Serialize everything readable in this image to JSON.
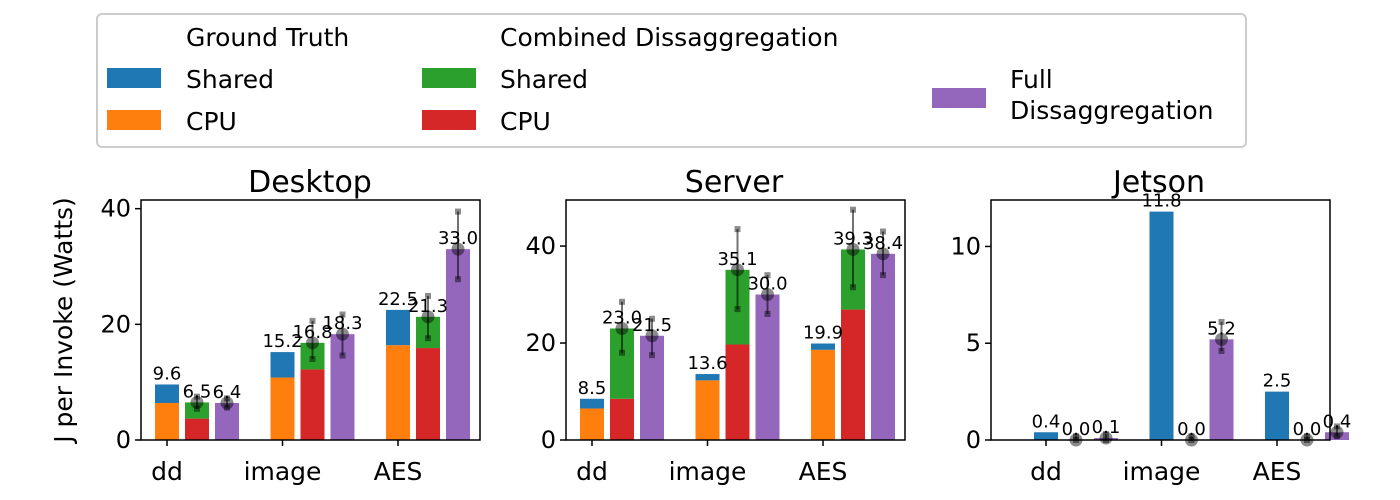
{
  "colors": {
    "gt_shared": "#1f77b4",
    "gt_cpu": "#ff7f0e",
    "comb_shared": "#2ca02c",
    "comb_cpu": "#d62728",
    "full": "#9467bd",
    "errorbar": "#000000"
  },
  "legend": {
    "group1_title": "Ground Truth",
    "group1_shared": "Shared",
    "group1_cpu": "CPU",
    "group2_title": "Combined Dissaggregation",
    "group2_shared": "Shared",
    "group2_cpu": "CPU",
    "full_line1": "Full",
    "full_line2": "Dissaggregation"
  },
  "ylabel": "J per Invoke (Watts)",
  "chart_data": [
    {
      "type": "bar",
      "title": "Desktop",
      "categories": [
        "dd",
        "image",
        "AES"
      ],
      "ylim": [
        0,
        41.5
      ],
      "yticks": [
        0,
        20,
        40
      ],
      "series": [
        {
          "name": "Ground Truth",
          "shared": [
            3.2,
            4.4,
            6.1
          ],
          "cpu": [
            6.4,
            10.8,
            16.4
          ],
          "labels": [
            "9.6",
            "15.2",
            "22.5"
          ]
        },
        {
          "name": "Combined Dissaggregation",
          "shared": [
            2.8,
            4.6,
            5.4
          ],
          "cpu": [
            3.7,
            12.2,
            15.9
          ],
          "labels": [
            "6.5",
            "16.8",
            "21.3"
          ],
          "error_mean": [
            6.5,
            16.8,
            21.3
          ],
          "error_low": [
            5.4,
            14.0,
            17.6
          ],
          "error_high": [
            7.5,
            20.6,
            24.9
          ]
        },
        {
          "name": "Full Dissaggregation",
          "values": [
            6.4,
            18.3,
            33.0
          ],
          "labels": [
            "6.4",
            "18.3",
            "33.0"
          ],
          "error_mean": [
            6.4,
            18.3,
            33.0
          ],
          "error_low": [
            5.6,
            14.6,
            27.8
          ],
          "error_high": [
            7.2,
            21.7,
            39.5
          ]
        }
      ]
    },
    {
      "type": "bar",
      "title": "Server",
      "categories": [
        "dd",
        "image",
        "AES"
      ],
      "ylim": [
        0,
        49.5
      ],
      "yticks": [
        0,
        20,
        40
      ],
      "series": [
        {
          "name": "Ground Truth",
          "shared": [
            2.0,
            1.3,
            1.3
          ],
          "cpu": [
            6.5,
            12.3,
            18.6
          ],
          "labels": [
            "8.5",
            "13.6",
            "19.9"
          ]
        },
        {
          "name": "Combined Dissaggregation",
          "shared": [
            14.5,
            15.4,
            12.4
          ],
          "cpu": [
            8.5,
            19.7,
            26.9
          ],
          "labels": [
            "23.0",
            "35.1",
            "39.3"
          ],
          "error_mean": [
            23.0,
            35.1,
            39.3
          ],
          "error_low": [
            18.0,
            27.0,
            31.5
          ],
          "error_high": [
            28.5,
            43.5,
            47.5
          ]
        },
        {
          "name": "Full Dissaggregation",
          "values": [
            21.5,
            30.0,
            38.4
          ],
          "labels": [
            "21.5",
            "30.0",
            "38.4"
          ],
          "error_mean": [
            21.5,
            30.0,
            38.4
          ],
          "error_low": [
            17.5,
            26.0,
            34.0
          ],
          "error_high": [
            25.0,
            34.0,
            43.0
          ]
        }
      ]
    },
    {
      "type": "bar",
      "title": "Jetson",
      "categories": [
        "dd",
        "image",
        "AES"
      ],
      "ylim": [
        0,
        12.4
      ],
      "yticks": [
        0,
        5,
        10
      ],
      "series": [
        {
          "name": "Ground Truth",
          "shared": [
            0.4,
            11.8,
            2.5
          ],
          "cpu": [
            0,
            0,
            0
          ],
          "labels": [
            "0.4",
            "11.8",
            "2.5"
          ]
        },
        {
          "name": "Combined Dissaggregation",
          "shared": [
            0.0,
            0.0,
            0.0
          ],
          "cpu": [
            0.0,
            0.0,
            0.0
          ],
          "labels": [
            "0.0",
            "0.0",
            "0.0"
          ],
          "error_mean": [
            0.0,
            0.0,
            0.0
          ],
          "error_low": [
            0.0,
            0.0,
            0.0
          ],
          "error_high": [
            0.2,
            0.2,
            0.2
          ]
        },
        {
          "name": "Full Dissaggregation",
          "values": [
            0.1,
            5.2,
            0.4
          ],
          "labels": [
            "0.1",
            "5.2",
            "0.4"
          ],
          "error_mean": [
            0.1,
            5.2,
            0.4
          ],
          "error_low": [
            0.0,
            4.6,
            0.2
          ],
          "error_high": [
            0.3,
            6.1,
            0.7
          ]
        }
      ]
    }
  ]
}
